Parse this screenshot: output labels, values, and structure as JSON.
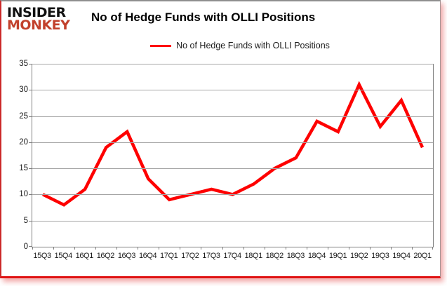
{
  "brand": {
    "line1": "INSIDER",
    "line2": "MONKEY"
  },
  "header": {
    "title": "No of Hedge Funds with OLLI Positions"
  },
  "legend": {
    "label": "No of Hedge Funds with OLLI Positions"
  },
  "colors": {
    "series_red": "#fe0000",
    "logo_red": "#c2412c",
    "gridline_gray": "#a6a6a6",
    "axis_gray": "#808080",
    "card_border_bottom_red": "#e01414"
  },
  "chart_data": {
    "type": "line",
    "title": "No of Hedge Funds with OLLI Positions",
    "categories": [
      "15Q3",
      "15Q4",
      "16Q1",
      "16Q2",
      "16Q3",
      "16Q4",
      "17Q1",
      "17Q2",
      "17Q3",
      "17Q4",
      "18Q1",
      "18Q2",
      "18Q3",
      "18Q4",
      "19Q1",
      "19Q2",
      "19Q3",
      "19Q4",
      "20Q1"
    ],
    "series": [
      {
        "name": "No of Hedge Funds with OLLI Positions",
        "color": "#fe0000",
        "values": [
          10,
          8,
          11,
          19,
          22,
          13,
          9,
          10,
          11,
          10,
          12,
          15,
          17,
          24,
          22,
          31,
          23,
          28,
          19
        ]
      }
    ],
    "xlabel": "",
    "ylabel": "",
    "ylim": [
      0,
      35
    ],
    "y_ticks": [
      0,
      5,
      10,
      15,
      20,
      25,
      30,
      35
    ],
    "grid": "horizontal",
    "legend_position": "top-center"
  }
}
